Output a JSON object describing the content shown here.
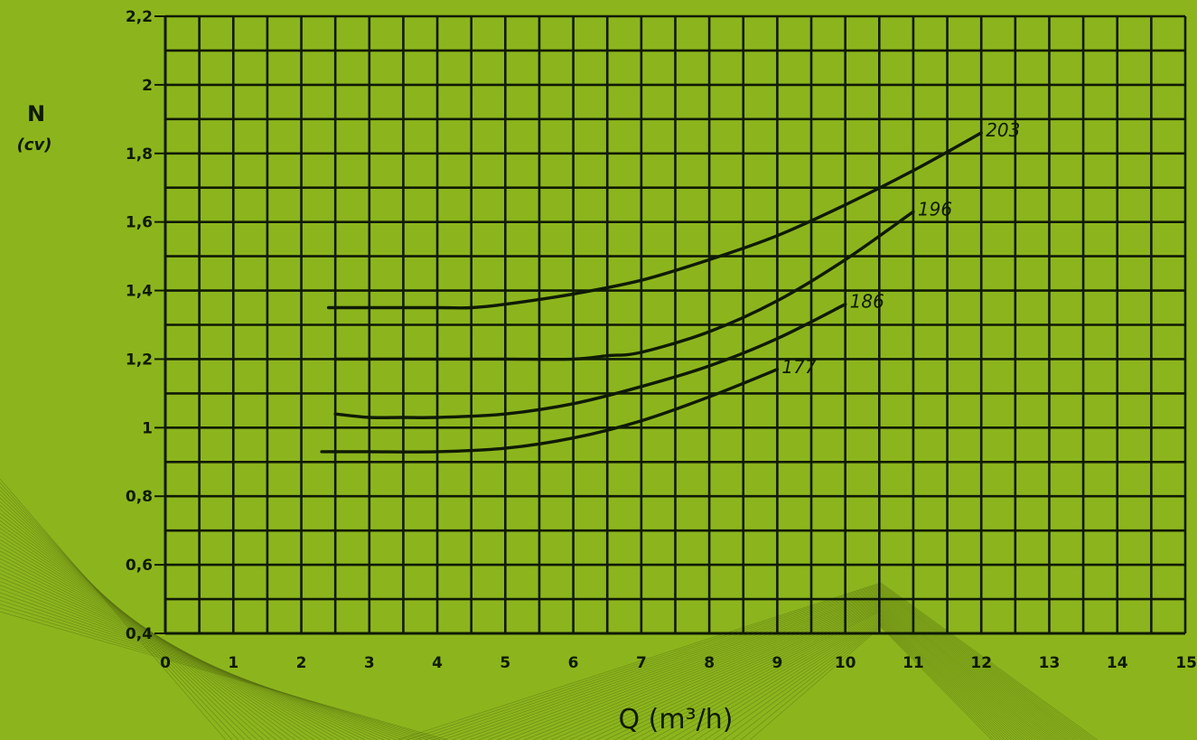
{
  "chart_data": {
    "type": "line",
    "ylabel": "N",
    "ylabel_unit": "(cv)",
    "xlabel": "Q (m³/h)",
    "xlim": [
      0,
      15
    ],
    "ylim": [
      0.4,
      2.2
    ],
    "x_ticks": [
      "0",
      "1",
      "2",
      "3",
      "4",
      "5",
      "6",
      "7",
      "8",
      "9",
      "10",
      "11",
      "12",
      "13",
      "14",
      "15"
    ],
    "y_ticks": [
      {
        "value": 0.4,
        "label": "0,4"
      },
      {
        "value": 0.6,
        "label": "0,6"
      },
      {
        "value": 0.8,
        "label": "0,8"
      },
      {
        "value": 1.0,
        "label": "1"
      },
      {
        "value": 1.2,
        "label": "1,2"
      },
      {
        "value": 1.4,
        "label": "1,4"
      },
      {
        "value": 1.6,
        "label": "1,6"
      },
      {
        "value": 1.8,
        "label": "1,8"
      },
      {
        "value": 2.0,
        "label": "2"
      },
      {
        "value": 2.2,
        "label": "2,2"
      }
    ],
    "grid": true,
    "grid_minor_step_x": 0.5,
    "grid_minor_step_y": 0.1,
    "series": [
      {
        "name": "203",
        "x": [
          2.4,
          3,
          4,
          4.5,
          5,
          6,
          7,
          8,
          9,
          10,
          11,
          12
        ],
        "y": [
          1.35,
          1.35,
          1.35,
          1.35,
          1.36,
          1.39,
          1.43,
          1.49,
          1.56,
          1.65,
          1.75,
          1.86
        ]
      },
      {
        "name": "196",
        "x": [
          2.5,
          3,
          4,
          5,
          6,
          6.5,
          7,
          8,
          9,
          10,
          11
        ],
        "y": [
          1.2,
          1.2,
          1.2,
          1.2,
          1.2,
          1.21,
          1.22,
          1.28,
          1.37,
          1.49,
          1.63
        ]
      },
      {
        "name": "186",
        "x": [
          2.5,
          3,
          3.5,
          4,
          5,
          6,
          7,
          8,
          9,
          10
        ],
        "y": [
          1.04,
          1.03,
          1.03,
          1.03,
          1.04,
          1.07,
          1.12,
          1.18,
          1.26,
          1.36
        ]
      },
      {
        "name": "177",
        "x": [
          2.3,
          3,
          4,
          5,
          6,
          7,
          8,
          9
        ],
        "y": [
          0.93,
          0.93,
          0.93,
          0.94,
          0.97,
          1.02,
          1.09,
          1.17
        ]
      }
    ]
  }
}
